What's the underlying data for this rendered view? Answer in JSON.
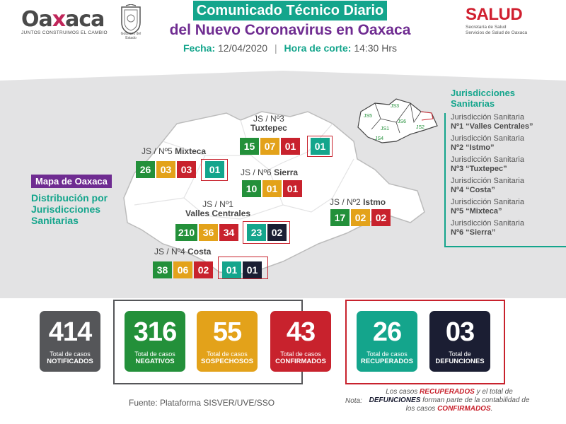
{
  "header": {
    "logo_left": {
      "word_a": "Oa",
      "word_x": "x",
      "word_b": "aca",
      "tagline": "JUNTOS CONSTRUIMOS EL CAMBIO",
      "shield_caption": "Gobierno del Estado"
    },
    "title": "Comunicado Técnico Diario",
    "subtitle": "del Nuevo Coronavirus en Oaxaca",
    "date_label": "Fecha:",
    "date_value": "12/04/2020",
    "cutoff_label": "Hora de corte:",
    "cutoff_value": "14:30 Hrs",
    "logo_right": {
      "word": "SALUD",
      "line1": "Secretaría de Salud",
      "line2": "Servicios de Salud de Oaxaca"
    }
  },
  "map_panel": {
    "mapa_label": "Mapa de Oaxaca",
    "distribucion": [
      "Distribución por",
      "Jurisdicciones",
      "Sanitarias"
    ],
    "jurisdictions": [
      {
        "id": "js3",
        "line1": "JS / Nº3",
        "line2": "Tuxtepec",
        "values": [
          "15",
          "07",
          "01",
          "01"
        ]
      },
      {
        "id": "js5",
        "line1": "JS / Nº5",
        "line2": "Mixteca",
        "values": [
          "26",
          "03",
          "03",
          "01"
        ]
      },
      {
        "id": "js6",
        "line1": "JS / Nº6",
        "line2": "Sierra",
        "values": [
          "10",
          "01",
          "01"
        ]
      },
      {
        "id": "js1",
        "line1": "JS / Nº1",
        "line2": "Valles Centrales",
        "values": [
          "210",
          "36",
          "34",
          "23",
          "02"
        ]
      },
      {
        "id": "js2",
        "line1": "JS / Nº2",
        "line2": "Istmo",
        "values": [
          "17",
          "02",
          "02"
        ]
      },
      {
        "id": "js4",
        "line1": "JS / Nº4",
        "line2": "Costa",
        "values": [
          "38",
          "06",
          "02",
          "01",
          "01"
        ]
      }
    ],
    "inset_labels": [
      "JS5",
      "JS3",
      "JS1",
      "JS6",
      "JS2",
      "JS4"
    ]
  },
  "legend": {
    "heading": [
      "Jurisdicciones",
      "Sanitarias"
    ],
    "items": [
      {
        "a": "Jurisdicción Sanitaria",
        "b": "Nº1 “Valles Centrales”"
      },
      {
        "a": "Jurisdicción Sanitaria",
        "b": "Nº2 “Istmo”"
      },
      {
        "a": "Jurisdicción Sanitaria",
        "b": "Nº3 “Tuxtepec”"
      },
      {
        "a": "Jurisdicción Sanitaria",
        "b": "Nº4 “Costa”"
      },
      {
        "a": "Jurisdicción Sanitaria",
        "b": "Nº5 “Mixteca”"
      },
      {
        "a": "Jurisdicción Sanitaria",
        "b": "Nº6 “Sierra”"
      }
    ]
  },
  "stats": [
    {
      "value": "414",
      "line1": "Total de casos",
      "line2": "NOTIFICADOS",
      "color": "#555659"
    },
    {
      "value": "316",
      "line1": "Total de casos",
      "line2": "NEGATIVOS",
      "color": "#23903a"
    },
    {
      "value": "55",
      "line1": "Total de casos",
      "line2": "SOSPECHOSOS",
      "color": "#e3a21a"
    },
    {
      "value": "43",
      "line1": "Total de casos",
      "line2": "CONFIRMADOS",
      "color": "#c8222d"
    },
    {
      "value": "26",
      "line1": "Total de casos",
      "line2": "RECUPERADOS",
      "color": "#14a58c"
    },
    {
      "value": "03",
      "line1": "Total de",
      "line2": "DEFUNCIONES",
      "color": "#1b1e33"
    }
  ],
  "footer": {
    "fuente": "Fuente: Plataforma SISVER/UVE/SSO",
    "nota_label": "Nota:",
    "nota_1": "Los casos ",
    "nota_recuperados": "RECUPERADOS",
    "nota_2": " y el total de",
    "nota_defunciones": "DEFUNCIONES",
    "nota_3": " forman parte de la contabilidad de los casos ",
    "nota_confirmados": "CONFIRMADOS",
    "nota_4": "."
  }
}
